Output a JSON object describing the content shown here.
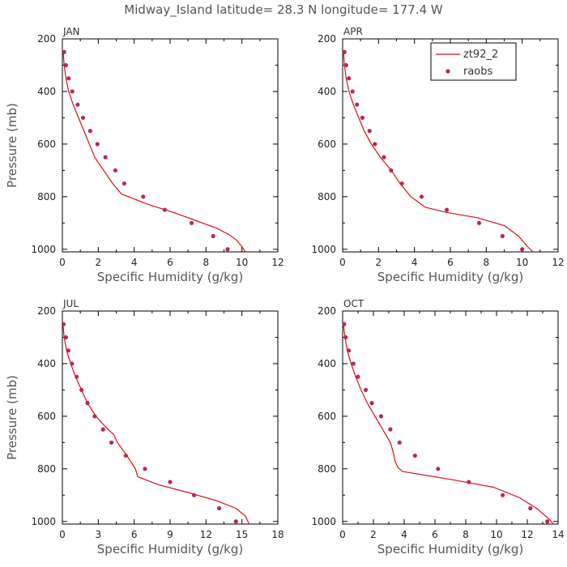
{
  "title": "Midway_Island  latitude= 28.3 N longitude= 177.4 W",
  "colors": {
    "model": "#dd1111",
    "obs": "#b52a55",
    "axis": "#000000"
  },
  "legend": {
    "model_label": "zt92_2",
    "obs_label": "raobs"
  },
  "chart_data": [
    {
      "type": "line",
      "title": "JAN",
      "xlabel": "Specific Humidity (g/kg)",
      "ylabel": "Pressure (mb)",
      "xlim": [
        0,
        12
      ],
      "ylim": [
        200,
        1010
      ],
      "xticks": [
        0,
        2,
        4,
        6,
        8,
        10,
        12
      ],
      "yticks": [
        200,
        400,
        600,
        800,
        1000
      ],
      "series": [
        {
          "name": "zt92_2",
          "x": [
            0.05,
            0.1,
            0.2,
            0.35,
            0.6,
            0.9,
            1.2,
            1.5,
            1.8,
            2.3,
            2.8,
            3.3,
            4.8,
            6.2,
            7.4,
            8.6,
            9.3,
            9.7,
            10.0,
            10.2
          ],
          "y": [
            250,
            300,
            350,
            400,
            450,
            500,
            550,
            600,
            650,
            700,
            750,
            790,
            830,
            860,
            890,
            920,
            945,
            965,
            990,
            1010
          ]
        },
        {
          "name": "raobs",
          "x": [
            0.1,
            0.2,
            0.35,
            0.55,
            0.85,
            1.15,
            1.55,
            1.95,
            2.4,
            2.95,
            3.45,
            4.5,
            5.7,
            7.2,
            8.4,
            9.2
          ],
          "y": [
            250,
            300,
            350,
            400,
            450,
            500,
            550,
            600,
            650,
            700,
            750,
            800,
            850,
            900,
            950,
            1000
          ]
        }
      ]
    },
    {
      "type": "line",
      "title": "APR",
      "xlabel": "Specific Humidity (g/kg)",
      "ylabel": "Pressure (mb)",
      "xlim": [
        0,
        12
      ],
      "ylim": [
        200,
        1010
      ],
      "xticks": [
        0,
        2,
        4,
        6,
        8,
        10,
        12
      ],
      "yticks": [
        200,
        400,
        600,
        800,
        1000
      ],
      "series": [
        {
          "name": "zt92_2",
          "x": [
            0.05,
            0.1,
            0.2,
            0.35,
            0.6,
            0.9,
            1.2,
            1.6,
            2.1,
            2.7,
            3.2,
            3.8,
            4.6,
            5.8,
            7.5,
            9.0,
            9.8,
            10.3,
            10.6
          ],
          "y": [
            250,
            300,
            350,
            400,
            450,
            500,
            550,
            600,
            650,
            700,
            750,
            800,
            840,
            860,
            880,
            910,
            950,
            990,
            1010
          ]
        },
        {
          "name": "raobs",
          "x": [
            0.1,
            0.2,
            0.35,
            0.55,
            0.8,
            1.1,
            1.5,
            1.8,
            2.3,
            2.7,
            3.3,
            4.4,
            5.8,
            7.6,
            8.9,
            10.0
          ],
          "y": [
            250,
            300,
            350,
            400,
            450,
            500,
            550,
            600,
            650,
            700,
            750,
            800,
            850,
            900,
            950,
            1000
          ]
        }
      ]
    },
    {
      "type": "line",
      "title": "JUL",
      "xlabel": "Specific Humidity (g/kg)",
      "ylabel": "Pressure (mb)",
      "xlim": [
        0,
        18
      ],
      "ylim": [
        200,
        1010
      ],
      "xticks": [
        0,
        3,
        6,
        9,
        12,
        15,
        18
      ],
      "yticks": [
        200,
        400,
        600,
        800,
        1000
      ],
      "series": [
        {
          "name": "zt92_2",
          "x": [
            0.05,
            0.15,
            0.35,
            0.7,
            1.1,
            1.6,
            2.1,
            2.8,
            3.6,
            4.3,
            4.6,
            5.4,
            6.1,
            6.3,
            8.0,
            10.5,
            12.8,
            14.5,
            15.3,
            15.6
          ],
          "y": [
            250,
            300,
            350,
            400,
            450,
            500,
            550,
            600,
            640,
            670,
            700,
            750,
            800,
            830,
            860,
            890,
            920,
            950,
            980,
            1010
          ]
        },
        {
          "name": "raobs",
          "x": [
            0.1,
            0.3,
            0.5,
            0.8,
            1.2,
            1.6,
            2.1,
            2.7,
            3.4,
            4.1,
            5.3,
            6.9,
            9.0,
            11.0,
            13.1,
            14.5
          ],
          "y": [
            250,
            300,
            350,
            400,
            450,
            500,
            550,
            600,
            650,
            700,
            750,
            800,
            850,
            900,
            950,
            1000
          ]
        }
      ]
    },
    {
      "type": "line",
      "title": "OCT",
      "xlabel": "Specific Humidity (g/kg)",
      "ylabel": "Pressure (mb)",
      "xlim": [
        0,
        14
      ],
      "ylim": [
        200,
        1010
      ],
      "xticks": [
        0,
        2,
        4,
        6,
        8,
        10,
        12,
        14
      ],
      "yticks": [
        200,
        400,
        600,
        800,
        1000
      ],
      "series": [
        {
          "name": "zt92_2",
          "x": [
            0.05,
            0.15,
            0.3,
            0.55,
            0.85,
            1.2,
            1.6,
            2.1,
            2.6,
            3.1,
            3.3,
            3.4,
            3.6,
            3.9,
            7.0,
            9.8,
            11.5,
            12.6,
            13.4,
            13.7
          ],
          "y": [
            250,
            300,
            350,
            400,
            450,
            500,
            550,
            600,
            650,
            700,
            740,
            770,
            795,
            810,
            840,
            870,
            910,
            950,
            990,
            1010
          ]
        },
        {
          "name": "raobs",
          "x": [
            0.1,
            0.2,
            0.4,
            0.7,
            1.0,
            1.5,
            1.9,
            2.5,
            3.1,
            3.7,
            4.7,
            6.2,
            8.2,
            10.4,
            12.2,
            13.3
          ],
          "y": [
            250,
            300,
            350,
            400,
            450,
            500,
            550,
            600,
            650,
            700,
            750,
            800,
            850,
            900,
            950,
            1000
          ]
        }
      ]
    }
  ]
}
